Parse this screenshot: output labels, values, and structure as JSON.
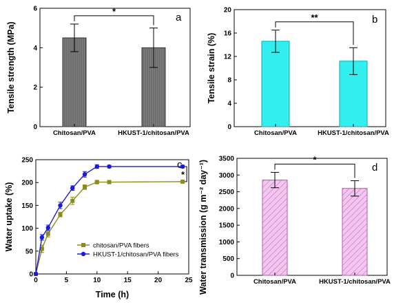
{
  "chart_data": [
    {
      "panel": "a",
      "type": "bar",
      "categories": [
        "Chitosan/PVA",
        "HKUST-1/chitosan/PVA"
      ],
      "values": [
        4.5,
        4.0
      ],
      "errors": [
        0.7,
        1.0
      ],
      "ylabel": "Tensile strength (MPa)",
      "xlabel": "",
      "ylim": [
        0,
        6
      ],
      "yticks": [
        0,
        2,
        4,
        6
      ],
      "fill": "#7f7f7f",
      "hatch": "vertical-lines",
      "significance": "*"
    },
    {
      "panel": "b",
      "type": "bar",
      "categories": [
        "Chitosan/PVA",
        "HKUST-1/chitosan/PVA"
      ],
      "values": [
        14.6,
        11.2
      ],
      "errors": [
        1.9,
        2.3
      ],
      "ylabel": "Tensile strain (%)",
      "xlabel": "",
      "ylim": [
        0,
        20
      ],
      "yticks": [
        0,
        4,
        8,
        12,
        16,
        20
      ],
      "fill": "#33eeee",
      "hatch": "none",
      "significance": "**"
    },
    {
      "panel": "c",
      "type": "line",
      "xlabel": "Time (h)",
      "ylabel": "Water uptake (%)",
      "xlim": [
        0,
        25
      ],
      "ylim": [
        0,
        250
      ],
      "xticks": [
        0,
        5,
        10,
        15,
        20,
        25
      ],
      "yticks": [
        0,
        50,
        100,
        150,
        200,
        250
      ],
      "x": [
        0,
        1,
        2,
        4,
        6,
        8,
        10,
        12,
        24
      ],
      "series": [
        {
          "name": "chitosan/PVA fibers",
          "values": [
            0,
            55,
            88,
            130,
            160,
            190,
            201,
            201,
            202
          ],
          "errors": [
            0,
            8,
            7,
            5,
            8,
            5,
            4,
            3,
            3
          ],
          "color": "#8b8b1e",
          "marker": "square"
        },
        {
          "name": "HKUST-1/chitosan/PVA fibers",
          "values": [
            0,
            80,
            101,
            150,
            188,
            218,
            235,
            235,
            235
          ],
          "errors": [
            0,
            6,
            6,
            7,
            5,
            6,
            4,
            3,
            3
          ],
          "color": "#1a1adf",
          "marker": "circle"
        }
      ],
      "legend_position": "lower-right",
      "significance": "*"
    },
    {
      "panel": "d",
      "type": "bar",
      "categories": [
        "Chitosan/PVA",
        "HKUST-1/chitosan/PVA"
      ],
      "values": [
        2850,
        2600
      ],
      "errors": [
        230,
        230
      ],
      "ylabel": "Water transmission (g m⁻² day⁻¹)",
      "xlabel": "",
      "ylim": [
        0,
        3500
      ],
      "yticks": [
        0,
        500,
        1000,
        1500,
        2000,
        2500,
        3000,
        3500
      ],
      "fill": "#f3c6f0",
      "hatch": "diagonal-lines",
      "significance": "*"
    }
  ]
}
